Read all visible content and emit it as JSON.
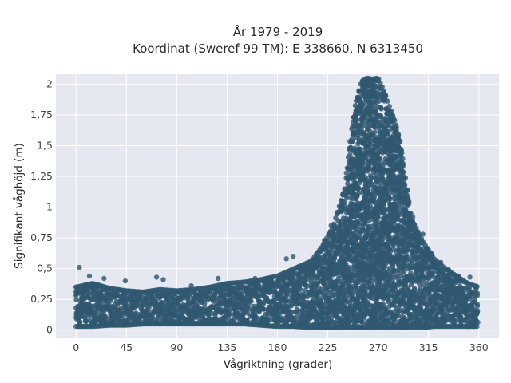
{
  "chart_data": {
    "type": "scatter",
    "title": "År 1979 - 2019",
    "subtitle": "Koordinat (Sweref 99 TM): E 338660, N 6313450",
    "xlabel": "Vågriktning (grader)",
    "ylabel": "Signifikant våghöjd (m)",
    "xlim": [
      -18,
      378
    ],
    "ylim": [
      -0.06,
      2.08
    ],
    "x_ticks": [
      0,
      45,
      90,
      135,
      180,
      225,
      270,
      315,
      360
    ],
    "x_tick_labels": [
      "0",
      "45",
      "90",
      "135",
      "180",
      "225",
      "270",
      "315",
      "360"
    ],
    "y_ticks": [
      0,
      0.25,
      0.5,
      0.75,
      1,
      1.25,
      1.5,
      1.75,
      2
    ],
    "y_tick_labels": [
      "0",
      "0,25",
      "0,5",
      "0,75",
      "1",
      "1,25",
      "1,5",
      "1,75",
      "2"
    ],
    "grid": true,
    "legend": "none",
    "background_color": "#e5e8f0",
    "point_color": "#2f5870",
    "envelope": {
      "x": [
        0,
        15,
        30,
        45,
        60,
        75,
        90,
        105,
        120,
        135,
        150,
        165,
        180,
        195,
        210,
        220,
        230,
        240,
        245,
        250,
        255,
        260,
        265,
        270,
        275,
        280,
        285,
        290,
        295,
        300,
        310,
        320,
        330,
        340,
        350,
        360
      ],
      "upper": [
        0.35,
        0.38,
        0.34,
        0.32,
        0.31,
        0.33,
        0.32,
        0.33,
        0.35,
        0.38,
        0.39,
        0.41,
        0.44,
        0.5,
        0.56,
        0.68,
        0.85,
        1.15,
        1.55,
        1.85,
        2.02,
        2.05,
        2.04,
        2.05,
        1.95,
        1.82,
        1.7,
        1.52,
        1.2,
        0.9,
        0.72,
        0.58,
        0.5,
        0.44,
        0.38,
        0.35
      ],
      "lower": [
        0.03,
        0.03,
        0.04,
        0.04,
        0.05,
        0.05,
        0.05,
        0.05,
        0.05,
        0.05,
        0.05,
        0.04,
        0.03,
        0.03,
        0.02,
        0.02,
        0.02,
        0.02,
        0.02,
        0.02,
        0.02,
        0.02,
        0.02,
        0.02,
        0.02,
        0.02,
        0.02,
        0.02,
        0.02,
        0.02,
        0.02,
        0.03,
        0.03,
        0.03,
        0.03,
        0.03
      ]
    },
    "outliers": [
      {
        "x": 3,
        "y": 0.51
      },
      {
        "x": 12,
        "y": 0.44
      },
      {
        "x": 25,
        "y": 0.42
      },
      {
        "x": 44,
        "y": 0.4
      },
      {
        "x": 72,
        "y": 0.43
      },
      {
        "x": 78,
        "y": 0.41
      },
      {
        "x": 103,
        "y": 0.36
      },
      {
        "x": 127,
        "y": 0.42
      },
      {
        "x": 160,
        "y": 0.42
      },
      {
        "x": 188,
        "y": 0.58
      },
      {
        "x": 194,
        "y": 0.6
      },
      {
        "x": 222,
        "y": 0.73
      },
      {
        "x": 228,
        "y": 0.85
      },
      {
        "x": 292,
        "y": 1.28
      },
      {
        "x": 301,
        "y": 0.92
      },
      {
        "x": 310,
        "y": 0.78
      },
      {
        "x": 318,
        "y": 0.62
      },
      {
        "x": 326,
        "y": 0.55
      },
      {
        "x": 333,
        "y": 0.49
      },
      {
        "x": 342,
        "y": 0.44
      },
      {
        "x": 352,
        "y": 0.43
      }
    ]
  }
}
